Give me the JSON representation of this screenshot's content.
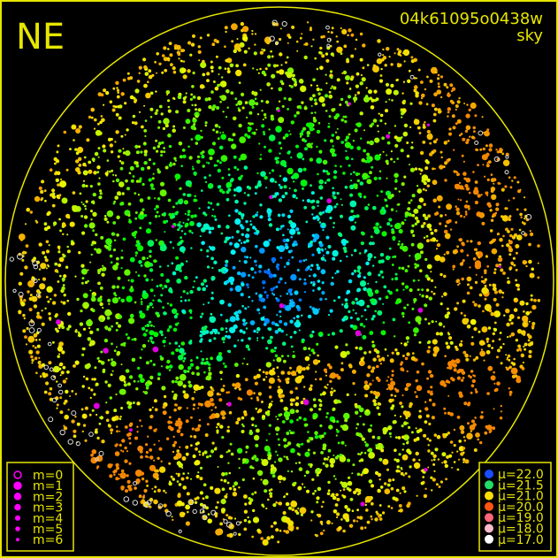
{
  "chart_data": {
    "type": "scatter",
    "title": "04k61095o0438w",
    "subtitle": "sky",
    "direction_label": "NE",
    "colors": {
      "frame": "#e6e600",
      "background": "#000000",
      "magnitude_marker": "#ff00ff"
    },
    "magnitude_legend": [
      {
        "label": "m=0",
        "marker": "hollow-circle"
      },
      {
        "label": "m=1",
        "marker": "dot"
      },
      {
        "label": "m=2",
        "marker": "dot"
      },
      {
        "label": "m=3",
        "marker": "dot"
      },
      {
        "label": "m=4",
        "marker": "dot"
      },
      {
        "label": "m=5",
        "marker": "dot"
      },
      {
        "label": "m=6",
        "marker": "dot"
      }
    ],
    "brightness_legend": [
      {
        "label": "μ=22.0",
        "color": "#1a4cff"
      },
      {
        "label": "μ=21.5",
        "color": "#22dd66"
      },
      {
        "label": "μ=21.0",
        "color": "#ffdd00"
      },
      {
        "label": "μ=20.0",
        "color": "#ff5511"
      },
      {
        "label": "μ=19.0",
        "color": "#ff6677"
      },
      {
        "label": "μ=18.0",
        "color": "#ffbbcc"
      },
      {
        "label": "μ=17.0",
        "color": "#ffffff"
      }
    ]
  }
}
